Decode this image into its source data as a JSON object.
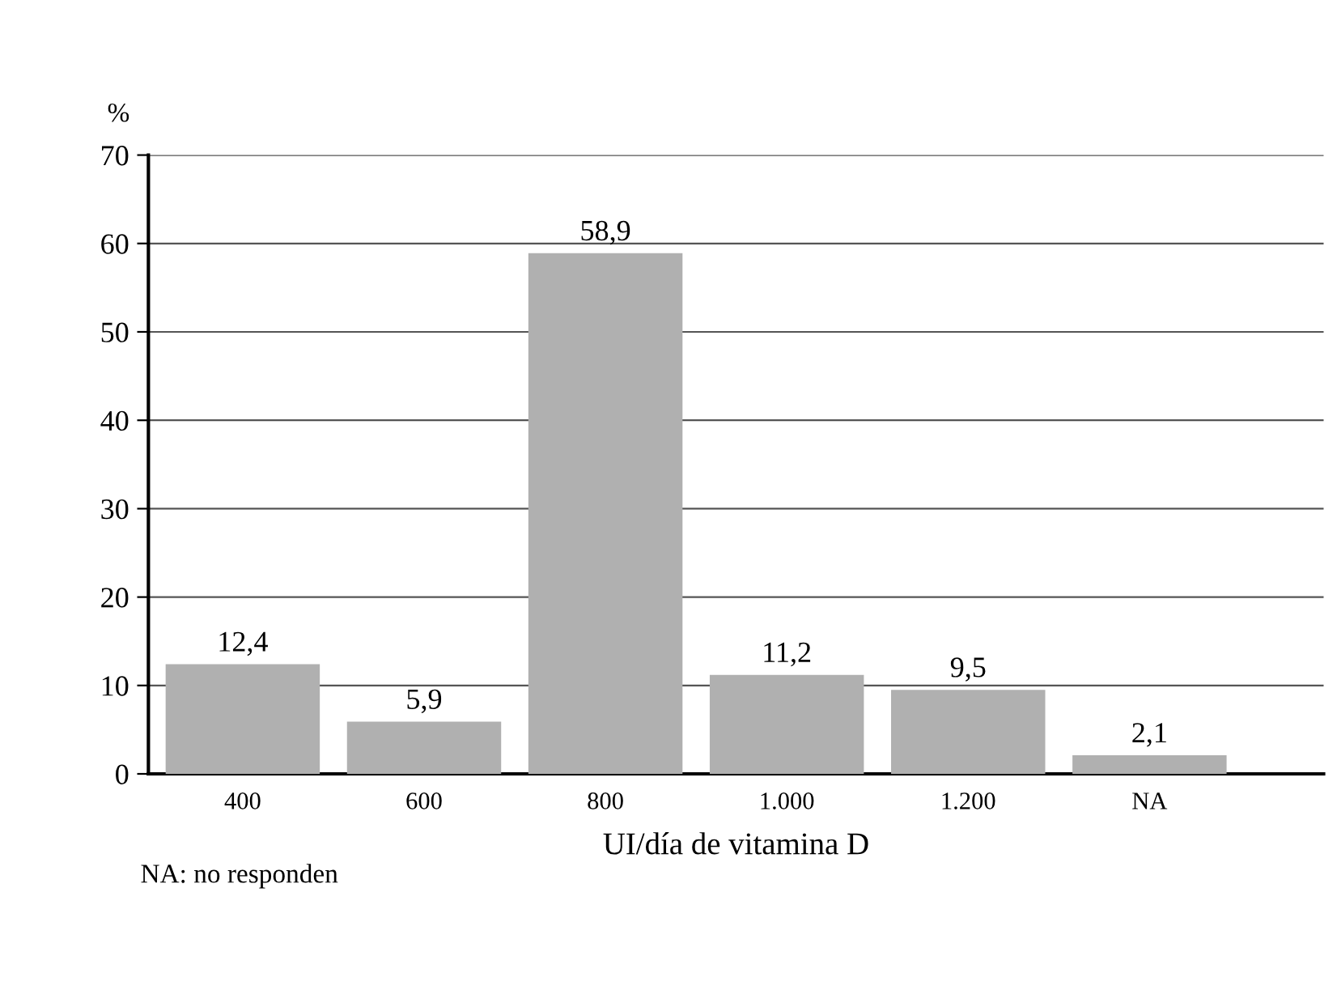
{
  "chart_data": {
    "type": "bar",
    "ylabel": "%",
    "xlabel": "UI/día de vitamina D",
    "categories": [
      "400",
      "600",
      "800",
      "1.000",
      "1.200",
      "NA"
    ],
    "values": [
      12.4,
      5.9,
      58.9,
      11.2,
      9.5,
      2.1
    ],
    "value_labels": [
      "12,4",
      "5,9",
      "58,9",
      "11,2",
      "9,5",
      "2,1"
    ],
    "color": "#b0b0b0",
    "ylim": [
      0,
      70
    ],
    "yticks": [
      0,
      10,
      20,
      30,
      40,
      50,
      60,
      70
    ],
    "grid": "y",
    "annotations": [
      "NA: no responden"
    ]
  }
}
